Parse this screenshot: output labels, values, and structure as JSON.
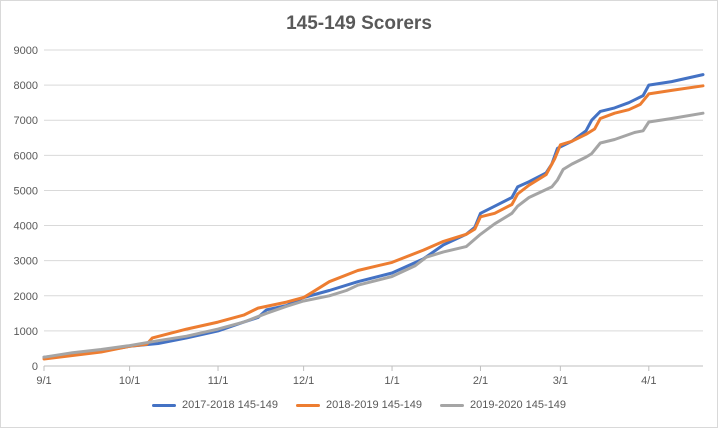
{
  "chart_data": {
    "type": "line",
    "title": "145-149 Scorers",
    "xlabel": "",
    "ylabel": "",
    "ylim": [
      0,
      9000
    ],
    "yticks": [
      "0",
      "1000",
      "2000",
      "3000",
      "4000",
      "5000",
      "6000",
      "7000",
      "8000",
      "9000"
    ],
    "xticks": [
      "9/1",
      "10/1",
      "11/1",
      "12/1",
      "1/1",
      "2/1",
      "3/1",
      "4/1"
    ],
    "x_unit": "days since 9/1",
    "x_tick_days": [
      0,
      30,
      61,
      91,
      122,
      153,
      181,
      212
    ],
    "xlim": [
      0,
      231
    ],
    "grid": true,
    "legend_position": "bottom",
    "series": [
      {
        "name": "2017-2018 145-149",
        "color": "#4472C4",
        "points": [
          [
            0,
            250
          ],
          [
            10,
            330
          ],
          [
            20,
            420
          ],
          [
            30,
            560
          ],
          [
            40,
            640
          ],
          [
            50,
            800
          ],
          [
            61,
            1000
          ],
          [
            70,
            1250
          ],
          [
            75,
            1380
          ],
          [
            78,
            1600
          ],
          [
            85,
            1720
          ],
          [
            91,
            1950
          ],
          [
            100,
            2150
          ],
          [
            110,
            2400
          ],
          [
            122,
            2650
          ],
          [
            133,
            3050
          ],
          [
            140,
            3450
          ],
          [
            148,
            3750
          ],
          [
            151,
            3950
          ],
          [
            153,
            4350
          ],
          [
            158,
            4550
          ],
          [
            164,
            4800
          ],
          [
            166,
            5100
          ],
          [
            170,
            5250
          ],
          [
            176,
            5500
          ],
          [
            178,
            5750
          ],
          [
            180,
            6200
          ],
          [
            185,
            6400
          ],
          [
            190,
            6700
          ],
          [
            192,
            7000
          ],
          [
            195,
            7250
          ],
          [
            200,
            7350
          ],
          [
            205,
            7500
          ],
          [
            210,
            7700
          ],
          [
            212,
            8000
          ],
          [
            220,
            8100
          ],
          [
            231,
            8300
          ]
        ]
      },
      {
        "name": "2018-2019 145-149",
        "color": "#ED7D31",
        "points": [
          [
            0,
            200
          ],
          [
            10,
            300
          ],
          [
            20,
            400
          ],
          [
            30,
            560
          ],
          [
            36,
            620
          ],
          [
            38,
            800
          ],
          [
            50,
            1050
          ],
          [
            61,
            1250
          ],
          [
            70,
            1450
          ],
          [
            75,
            1650
          ],
          [
            85,
            1820
          ],
          [
            91,
            1950
          ],
          [
            94,
            2100
          ],
          [
            100,
            2400
          ],
          [
            110,
            2720
          ],
          [
            122,
            2950
          ],
          [
            133,
            3300
          ],
          [
            140,
            3550
          ],
          [
            148,
            3750
          ],
          [
            151,
            3900
          ],
          [
            153,
            4250
          ],
          [
            158,
            4350
          ],
          [
            164,
            4600
          ],
          [
            166,
            4900
          ],
          [
            170,
            5150
          ],
          [
            176,
            5450
          ],
          [
            179,
            5900
          ],
          [
            181,
            6300
          ],
          [
            185,
            6400
          ],
          [
            190,
            6600
          ],
          [
            193,
            6750
          ],
          [
            195,
            7050
          ],
          [
            200,
            7200
          ],
          [
            205,
            7300
          ],
          [
            209,
            7450
          ],
          [
            212,
            7750
          ],
          [
            220,
            7850
          ],
          [
            231,
            7980
          ]
        ]
      },
      {
        "name": "2019-2020 145-149",
        "color": "#A5A5A5",
        "points": [
          [
            0,
            250
          ],
          [
            10,
            380
          ],
          [
            20,
            470
          ],
          [
            30,
            580
          ],
          [
            40,
            720
          ],
          [
            50,
            850
          ],
          [
            61,
            1050
          ],
          [
            70,
            1250
          ],
          [
            78,
            1500
          ],
          [
            85,
            1700
          ],
          [
            91,
            1850
          ],
          [
            100,
            2000
          ],
          [
            106,
            2150
          ],
          [
            110,
            2300
          ],
          [
            122,
            2550
          ],
          [
            130,
            2850
          ],
          [
            134,
            3100
          ],
          [
            140,
            3250
          ],
          [
            148,
            3400
          ],
          [
            153,
            3750
          ],
          [
            158,
            4050
          ],
          [
            164,
            4350
          ],
          [
            166,
            4550
          ],
          [
            170,
            4800
          ],
          [
            178,
            5100
          ],
          [
            180,
            5300
          ],
          [
            182,
            5600
          ],
          [
            185,
            5750
          ],
          [
            190,
            5950
          ],
          [
            192,
            6050
          ],
          [
            195,
            6350
          ],
          [
            200,
            6450
          ],
          [
            207,
            6650
          ],
          [
            210,
            6700
          ],
          [
            212,
            6950
          ],
          [
            220,
            7050
          ],
          [
            231,
            7200
          ]
        ]
      }
    ]
  }
}
